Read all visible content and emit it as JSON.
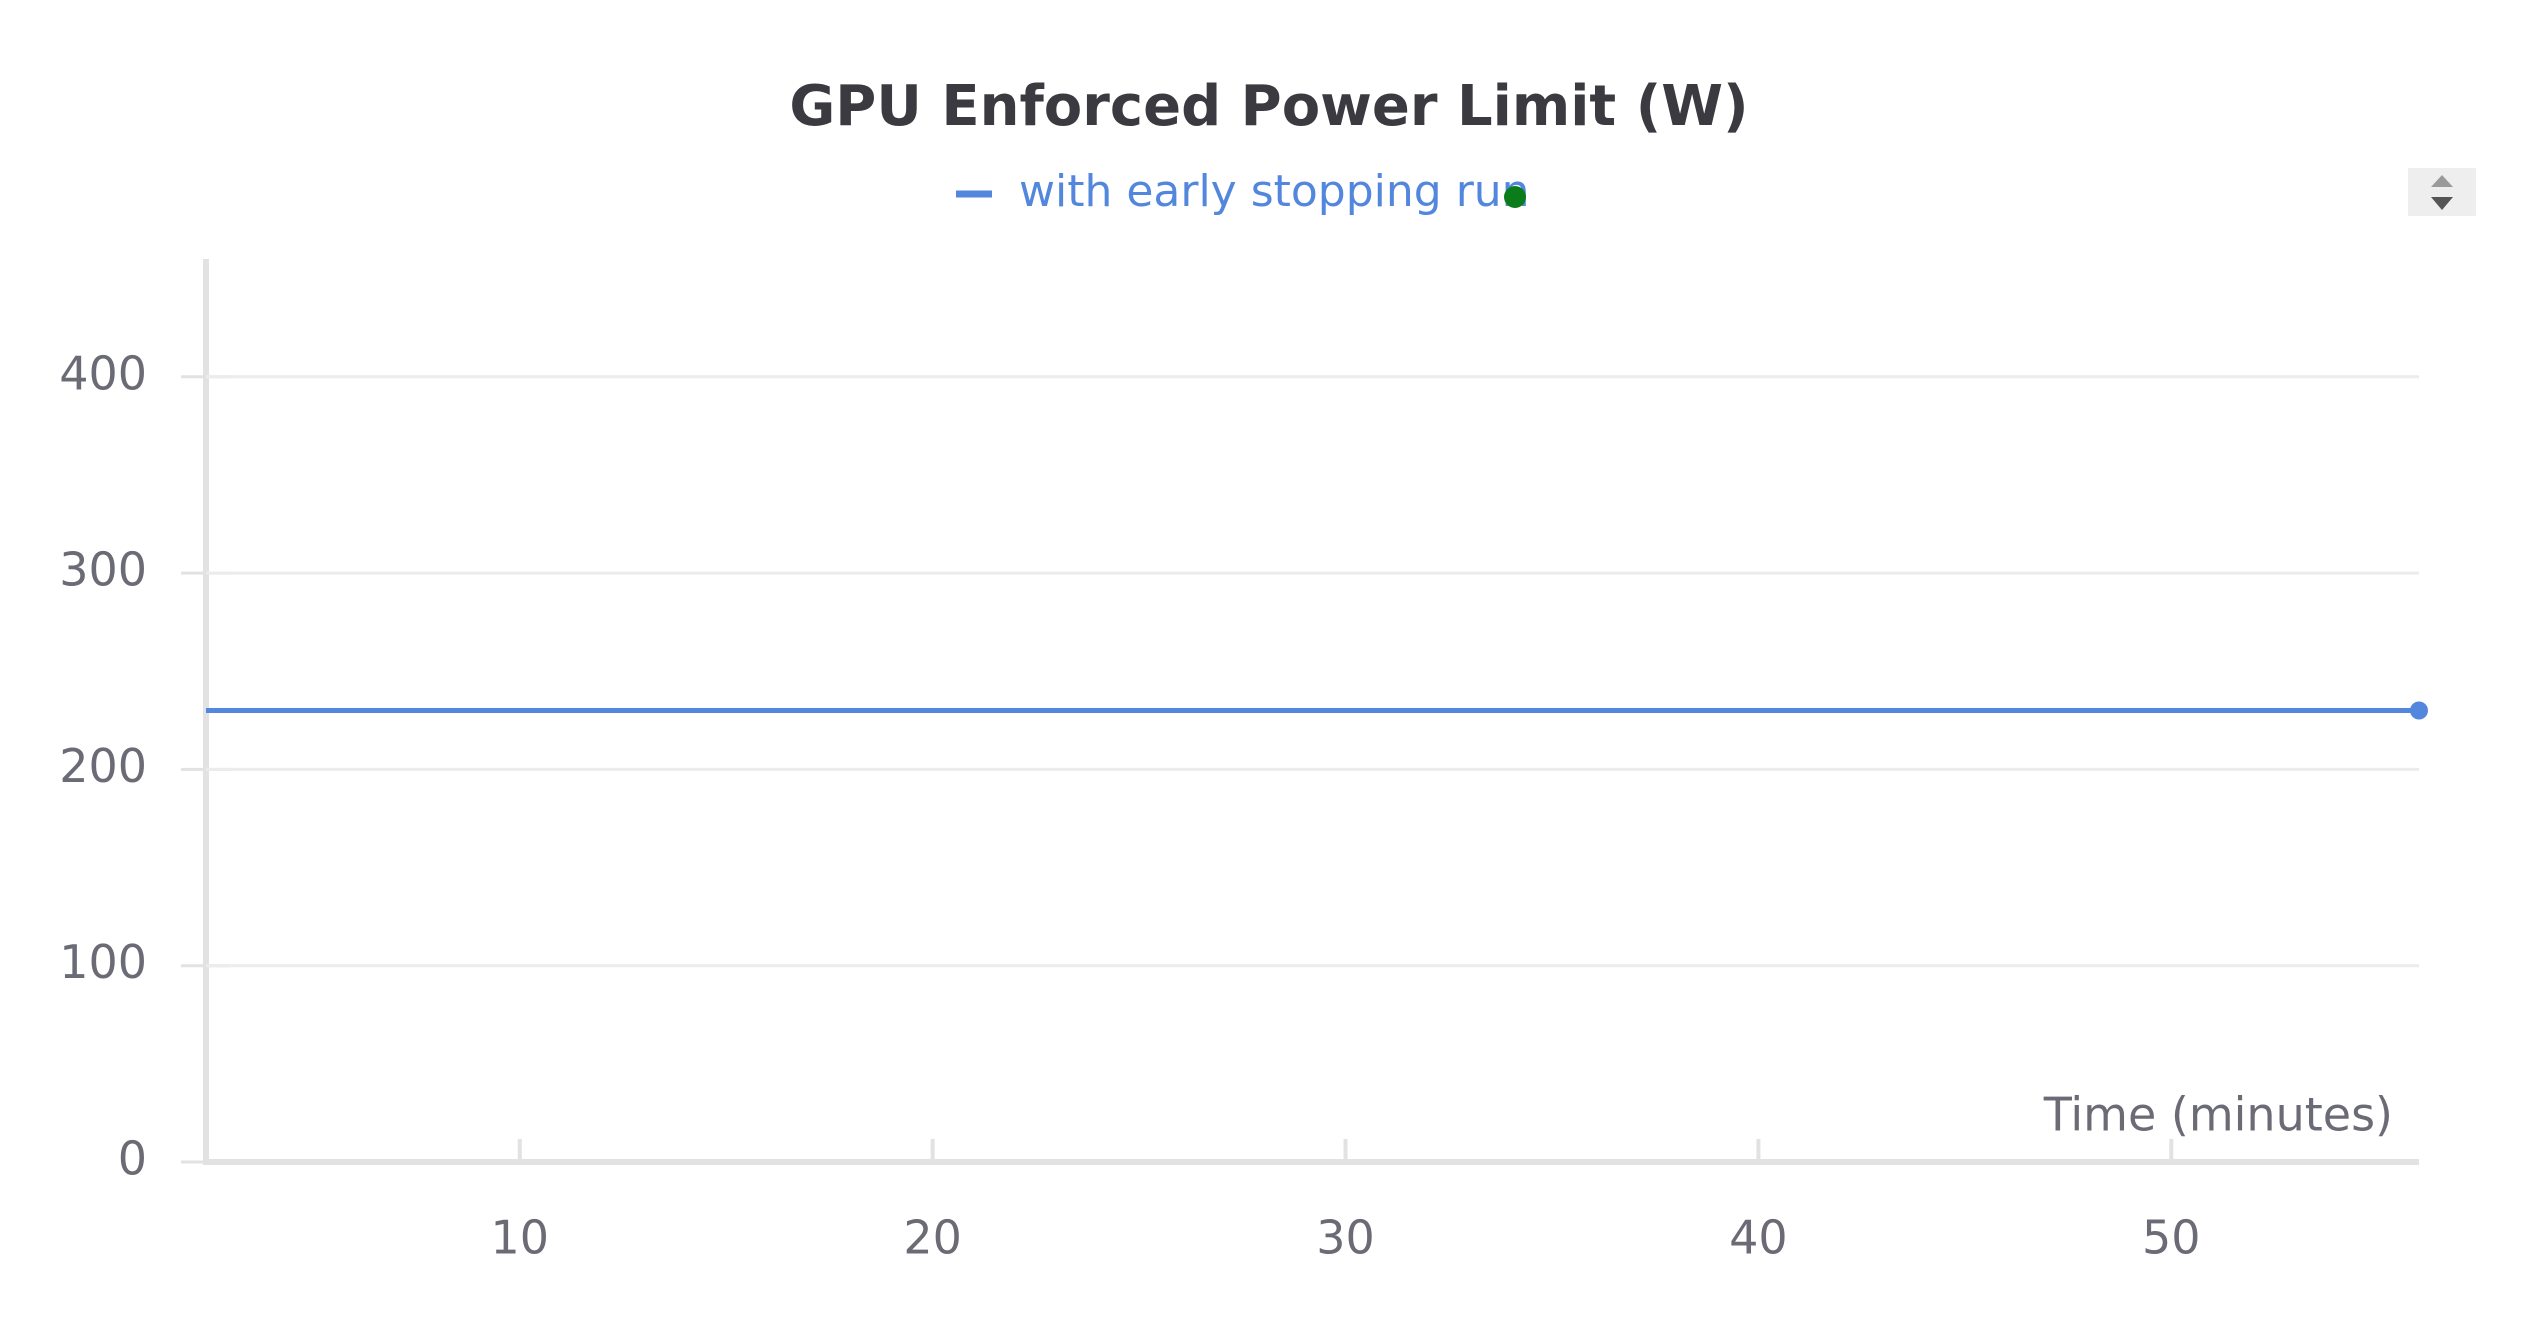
{
  "chart_data": {
    "type": "line",
    "title": "GPU Enforced Power Limit (W)",
    "x_label": "Time (minutes)",
    "x": [
      2.4,
      56
    ],
    "series": [
      {
        "name": "with early stopping run",
        "color": "#5387dd",
        "values": [
          230,
          230
        ]
      }
    ],
    "xlim": [
      2.4,
      56
    ],
    "ylim": [
      0,
      460
    ],
    "xticks": [
      10,
      20,
      30,
      40,
      50
    ],
    "yticks": [
      0,
      100,
      200,
      300,
      400
    ],
    "grid": true
  }
}
